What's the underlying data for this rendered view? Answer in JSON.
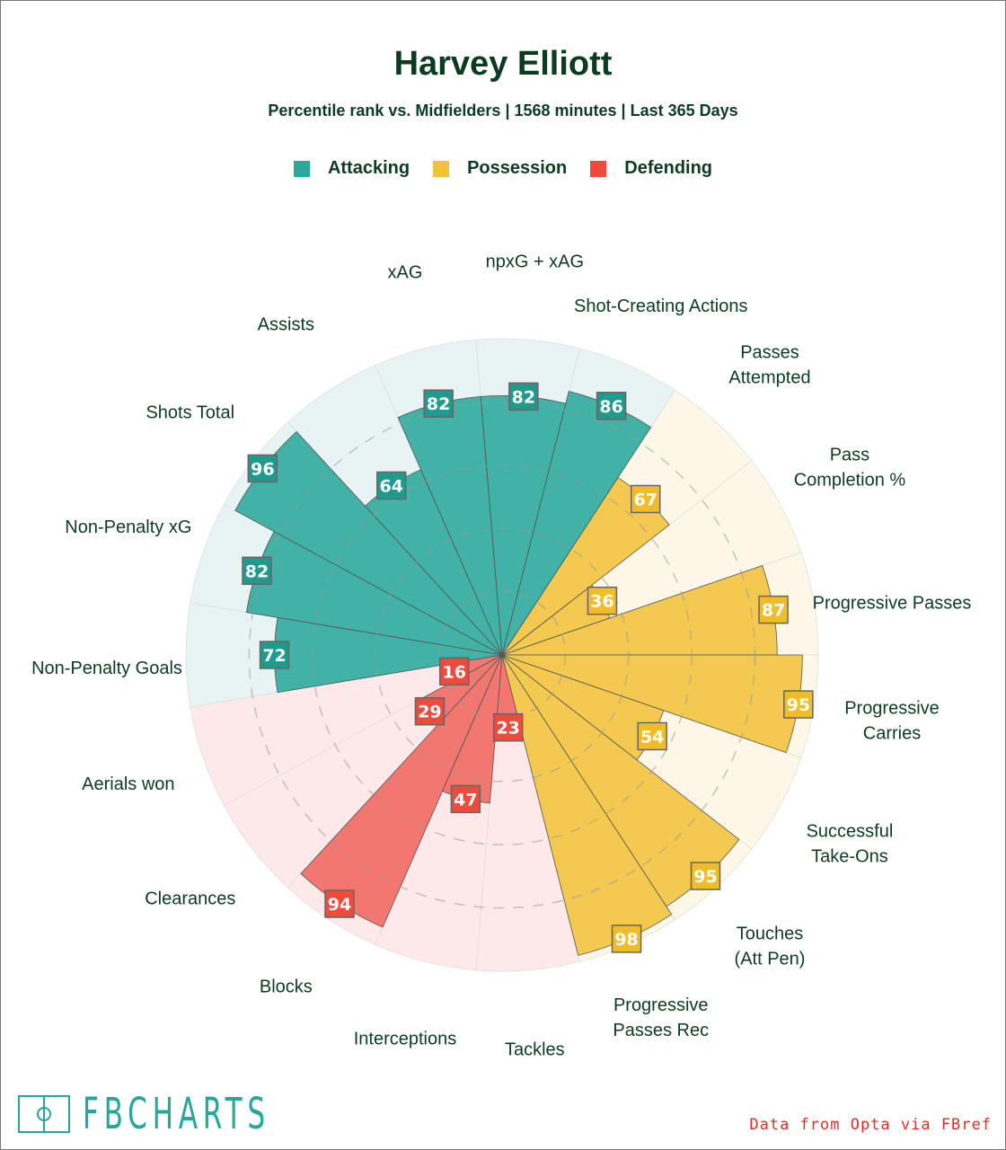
{
  "title": "Harvey Elliott",
  "subtitle": "Percentile rank vs. Midfielders | 1568 minutes | Last 365 Days",
  "legend": [
    {
      "label": "Attacking",
      "color": "#2aa79b"
    },
    {
      "label": "Possession",
      "color": "#f2c33a"
    },
    {
      "label": "Defending",
      "color": "#ee4b3e"
    }
  ],
  "footer": {
    "logo": "FBCHARTS",
    "credit": "Data from Opta via FBref"
  },
  "chart_data": {
    "type": "pie",
    "subtype": "polar-bar (pizza)",
    "title": "Harvey Elliott",
    "range": [
      0,
      100
    ],
    "gridlines": [
      20,
      40,
      60,
      80,
      100
    ],
    "categories": [
      "Progressive Passes",
      "Pass Completion %",
      "Passes Attempted",
      "Shot-Creating Actions",
      "npxG + xAG",
      "xAG",
      "Assists",
      "Shots Total",
      "Non-Penalty xG",
      "Non-Penalty Goals",
      "Aerials won",
      "Clearances",
      "Blocks",
      "Interceptions",
      "Tackles",
      "Progressive Passes Rec",
      "Touches (Att Pen)",
      "Successful Take-Ons",
      "Progressive Carries"
    ],
    "groups": [
      "Possession",
      "Possession",
      "Possession",
      "Attacking",
      "Attacking",
      "Attacking",
      "Attacking",
      "Attacking",
      "Attacking",
      "Attacking",
      "Defending",
      "Defending",
      "Defending",
      "Defending",
      "Defending",
      "Possession",
      "Possession",
      "Possession",
      "Possession"
    ],
    "values": [
      87,
      36,
      67,
      86,
      82,
      82,
      64,
      96,
      82,
      72,
      16,
      29,
      94,
      47,
      23,
      98,
      95,
      54,
      95
    ]
  }
}
